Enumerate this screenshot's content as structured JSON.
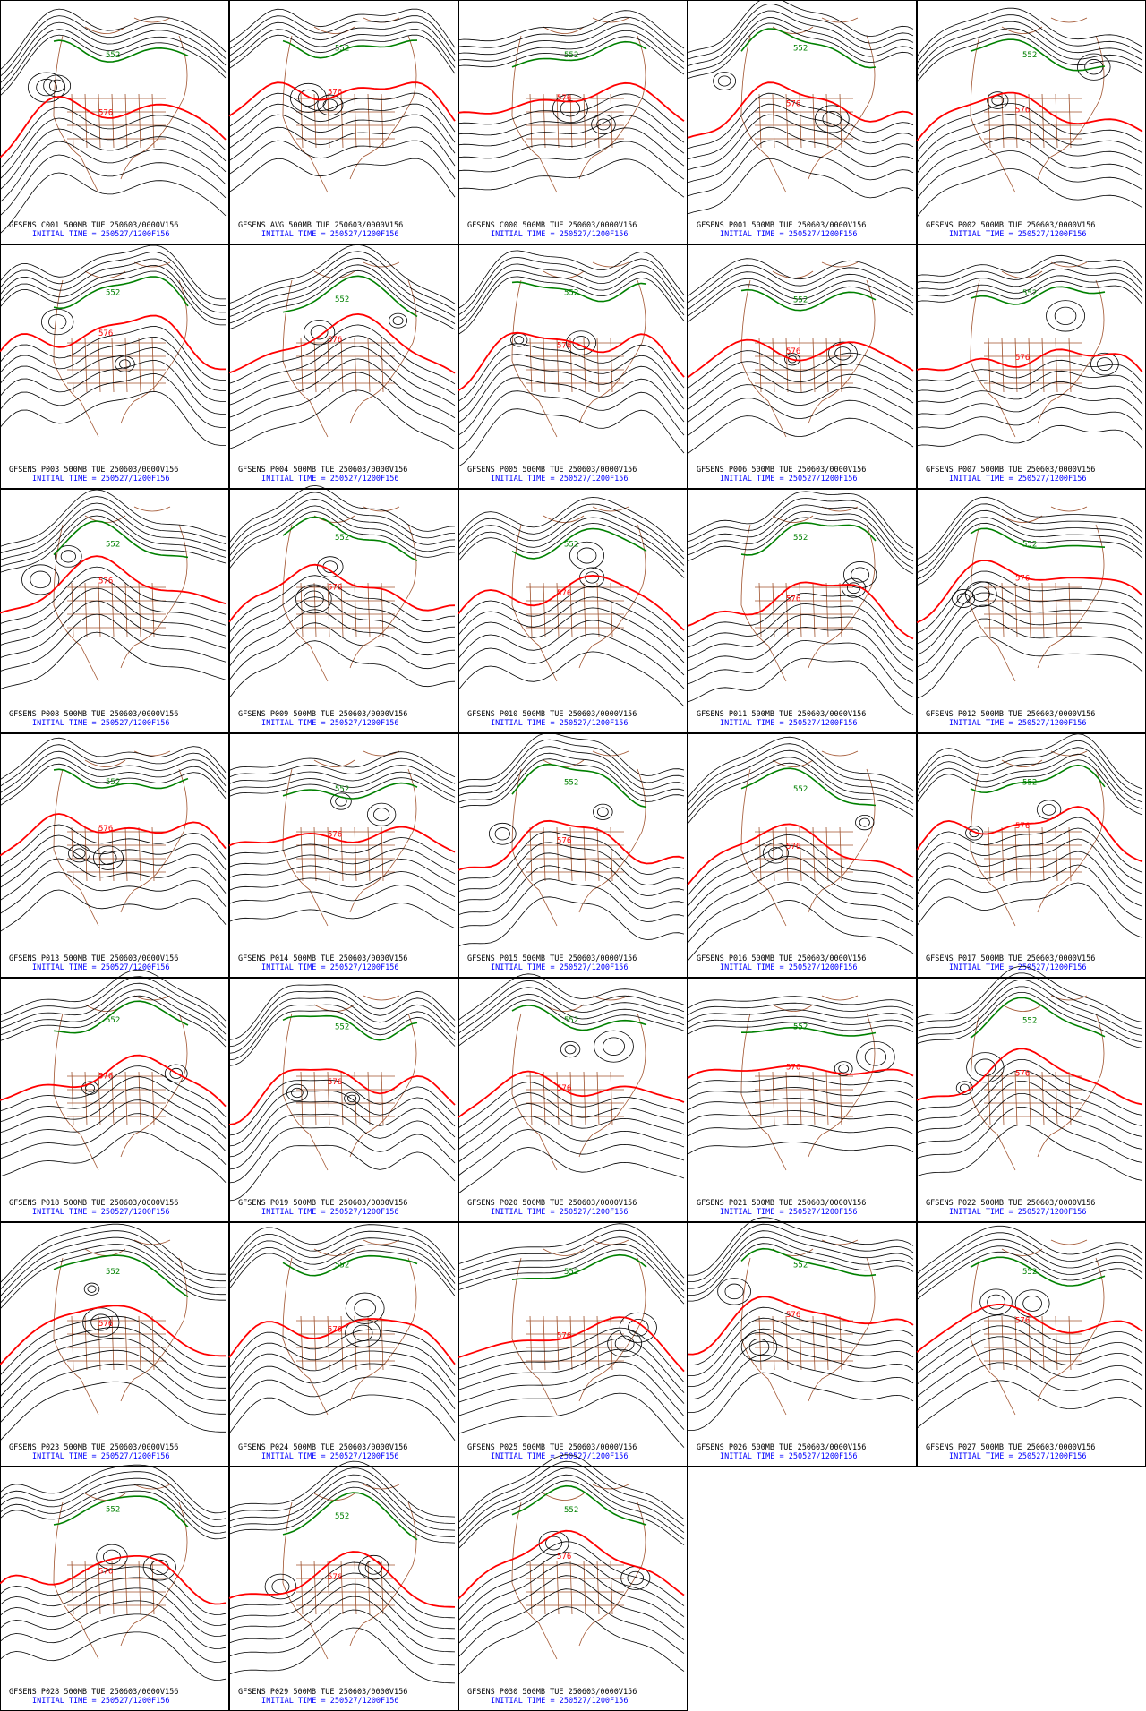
{
  "panels": [
    {
      "title": "GFSENS C001 500MB TUE 250603/0000V156",
      "init": "INITIAL TIME = 250527/1200F156",
      "contour_labels": [
        "552",
        "576"
      ]
    },
    {
      "title": "GFSENS AVG 500MB TUE 250603/0000V156",
      "init": "INITIAL TIME = 250527/1200F156",
      "contour_labels": [
        "552",
        "576"
      ]
    },
    {
      "title": "GFSENS C000 500MB TUE 250603/0000V156",
      "init": "INITIAL TIME = 250527/1200F156",
      "contour_labels": [
        "552",
        "576"
      ]
    },
    {
      "title": "GFSENS P001 500MB TUE 250603/0000V156",
      "init": "INITIAL TIME = 250527/1200F156",
      "contour_labels": [
        "552",
        "576"
      ]
    },
    {
      "title": "GFSENS P002 500MB TUE 250603/0000V156",
      "init": "INITIAL TIME = 250527/1200F156",
      "contour_labels": [
        "552",
        "576"
      ]
    },
    {
      "title": "GFSENS P003 500MB TUE 250603/0000V156",
      "init": "INITIAL TIME = 250527/1200F156",
      "contour_labels": [
        "552",
        "576"
      ]
    },
    {
      "title": "GFSENS P004 500MB TUE 250603/0000V156",
      "init": "INITIAL TIME = 250527/1200F156",
      "contour_labels": [
        "552",
        "576"
      ]
    },
    {
      "title": "GFSENS P005 500MB TUE 250603/0000V156",
      "init": "INITIAL TIME = 250527/1200F156",
      "contour_labels": [
        "552",
        "576"
      ]
    },
    {
      "title": "GFSENS P006 500MB TUE 250603/0000V156",
      "init": "INITIAL TIME = 250527/1200F156",
      "contour_labels": [
        "552",
        "576"
      ]
    },
    {
      "title": "GFSENS P007 500MB TUE 250603/0000V156",
      "init": "INITIAL TIME = 250527/1200F156",
      "contour_labels": [
        "552",
        "576"
      ]
    },
    {
      "title": "GFSENS P008 500MB TUE 250603/0000V156",
      "init": "INITIAL TIME = 250527/1200F156",
      "contour_labels": [
        "552",
        "576"
      ]
    },
    {
      "title": "GFSENS P009 500MB TUE 250603/0000V156",
      "init": "INITIAL TIME = 250527/1200F156",
      "contour_labels": [
        "552",
        "576"
      ]
    },
    {
      "title": "GFSENS P010 500MB TUE 250603/0000V156",
      "init": "INITIAL TIME = 250527/1200F156",
      "contour_labels": [
        "552",
        "576"
      ]
    },
    {
      "title": "GFSENS P011 500MB TUE 250603/0000V156",
      "init": "INITIAL TIME = 250527/1200F156",
      "contour_labels": [
        "552",
        "576"
      ]
    },
    {
      "title": "GFSENS P012 500MB TUE 250603/0000V156",
      "init": "INITIAL TIME = 250527/1200F156",
      "contour_labels": [
        "552",
        "576"
      ]
    },
    {
      "title": "GFSENS P013 500MB TUE 250603/0000V156",
      "init": "INITIAL TIME = 250527/1200F156",
      "contour_labels": [
        "552",
        "576"
      ]
    },
    {
      "title": "GFSENS P014 500MB TUE 250603/0000V156",
      "init": "INITIAL TIME = 250527/1200F156",
      "contour_labels": [
        "552",
        "576"
      ]
    },
    {
      "title": "GFSENS P015 500MB TUE 250603/0000V156",
      "init": "INITIAL TIME = 250527/1200F156",
      "contour_labels": [
        "552",
        "576"
      ]
    },
    {
      "title": "GFSENS P016 500MB TUE 250603/0000V156",
      "init": "INITIAL TIME = 250527/1200F156",
      "contour_labels": [
        "552",
        "576"
      ]
    },
    {
      "title": "GFSENS P017 500MB TUE 250603/0000V156",
      "init": "INITIAL TIME = 250527/1200F156",
      "contour_labels": [
        "552",
        "576"
      ]
    },
    {
      "title": "GFSENS P018 500MB TUE 250603/0000V156",
      "init": "INITIAL TIME = 250527/1200F156",
      "contour_labels": [
        "552",
        "576"
      ]
    },
    {
      "title": "GFSENS P019 500MB TUE 250603/0000V156",
      "init": "INITIAL TIME = 250527/1200F156",
      "contour_labels": [
        "552",
        "576"
      ]
    },
    {
      "title": "GFSENS P020 500MB TUE 250603/0000V156",
      "init": "INITIAL TIME = 250527/1200F156",
      "contour_labels": [
        "552",
        "576"
      ]
    },
    {
      "title": "GFSENS P021 500MB TUE 250603/0000V156",
      "init": "INITIAL TIME = 250527/1200F156",
      "contour_labels": [
        "552",
        "576"
      ]
    },
    {
      "title": "GFSENS P022 500MB TUE 250603/0000V156",
      "init": "INITIAL TIME = 250527/1200F156",
      "contour_labels": [
        "552",
        "576"
      ]
    },
    {
      "title": "GFSENS P023 500MB TUE 250603/0000V156",
      "init": "INITIAL TIME = 250527/1200F156",
      "contour_labels": [
        "552",
        "576"
      ]
    },
    {
      "title": "GFSENS P024 500MB TUE 250603/0000V156",
      "init": "INITIAL TIME = 250527/1200F156",
      "contour_labels": [
        "552",
        "576"
      ]
    },
    {
      "title": "GFSENS P025 500MB TUE 250603/0000V156",
      "init": "INITIAL TIME = 250527/1200F156",
      "contour_labels": [
        "552",
        "576"
      ]
    },
    {
      "title": "GFSENS P026 500MB TUE 250603/0000V156",
      "init": "INITIAL TIME = 250527/1200F156",
      "contour_labels": [
        "552",
        "576"
      ]
    },
    {
      "title": "GFSENS P027 500MB TUE 250603/0000V156",
      "init": "INITIAL TIME = 250527/1200F156",
      "contour_labels": [
        "552",
        "576"
      ]
    },
    {
      "title": "GFSENS P028 500MB TUE 250603/0000V156",
      "init": "INITIAL TIME = 250527/1200F156",
      "contour_labels": [
        "552",
        "576"
      ]
    },
    {
      "title": "GFSENS P029 500MB TUE 250603/0000V156",
      "init": "INITIAL TIME = 250527/1200F156",
      "contour_labels": [
        "552",
        "576"
      ]
    },
    {
      "title": "GFSENS P030 500MB TUE 250603/0000V156",
      "init": "INITIAL TIME = 250527/1200F156",
      "contour_labels": [
        "552",
        "576"
      ]
    }
  ]
}
